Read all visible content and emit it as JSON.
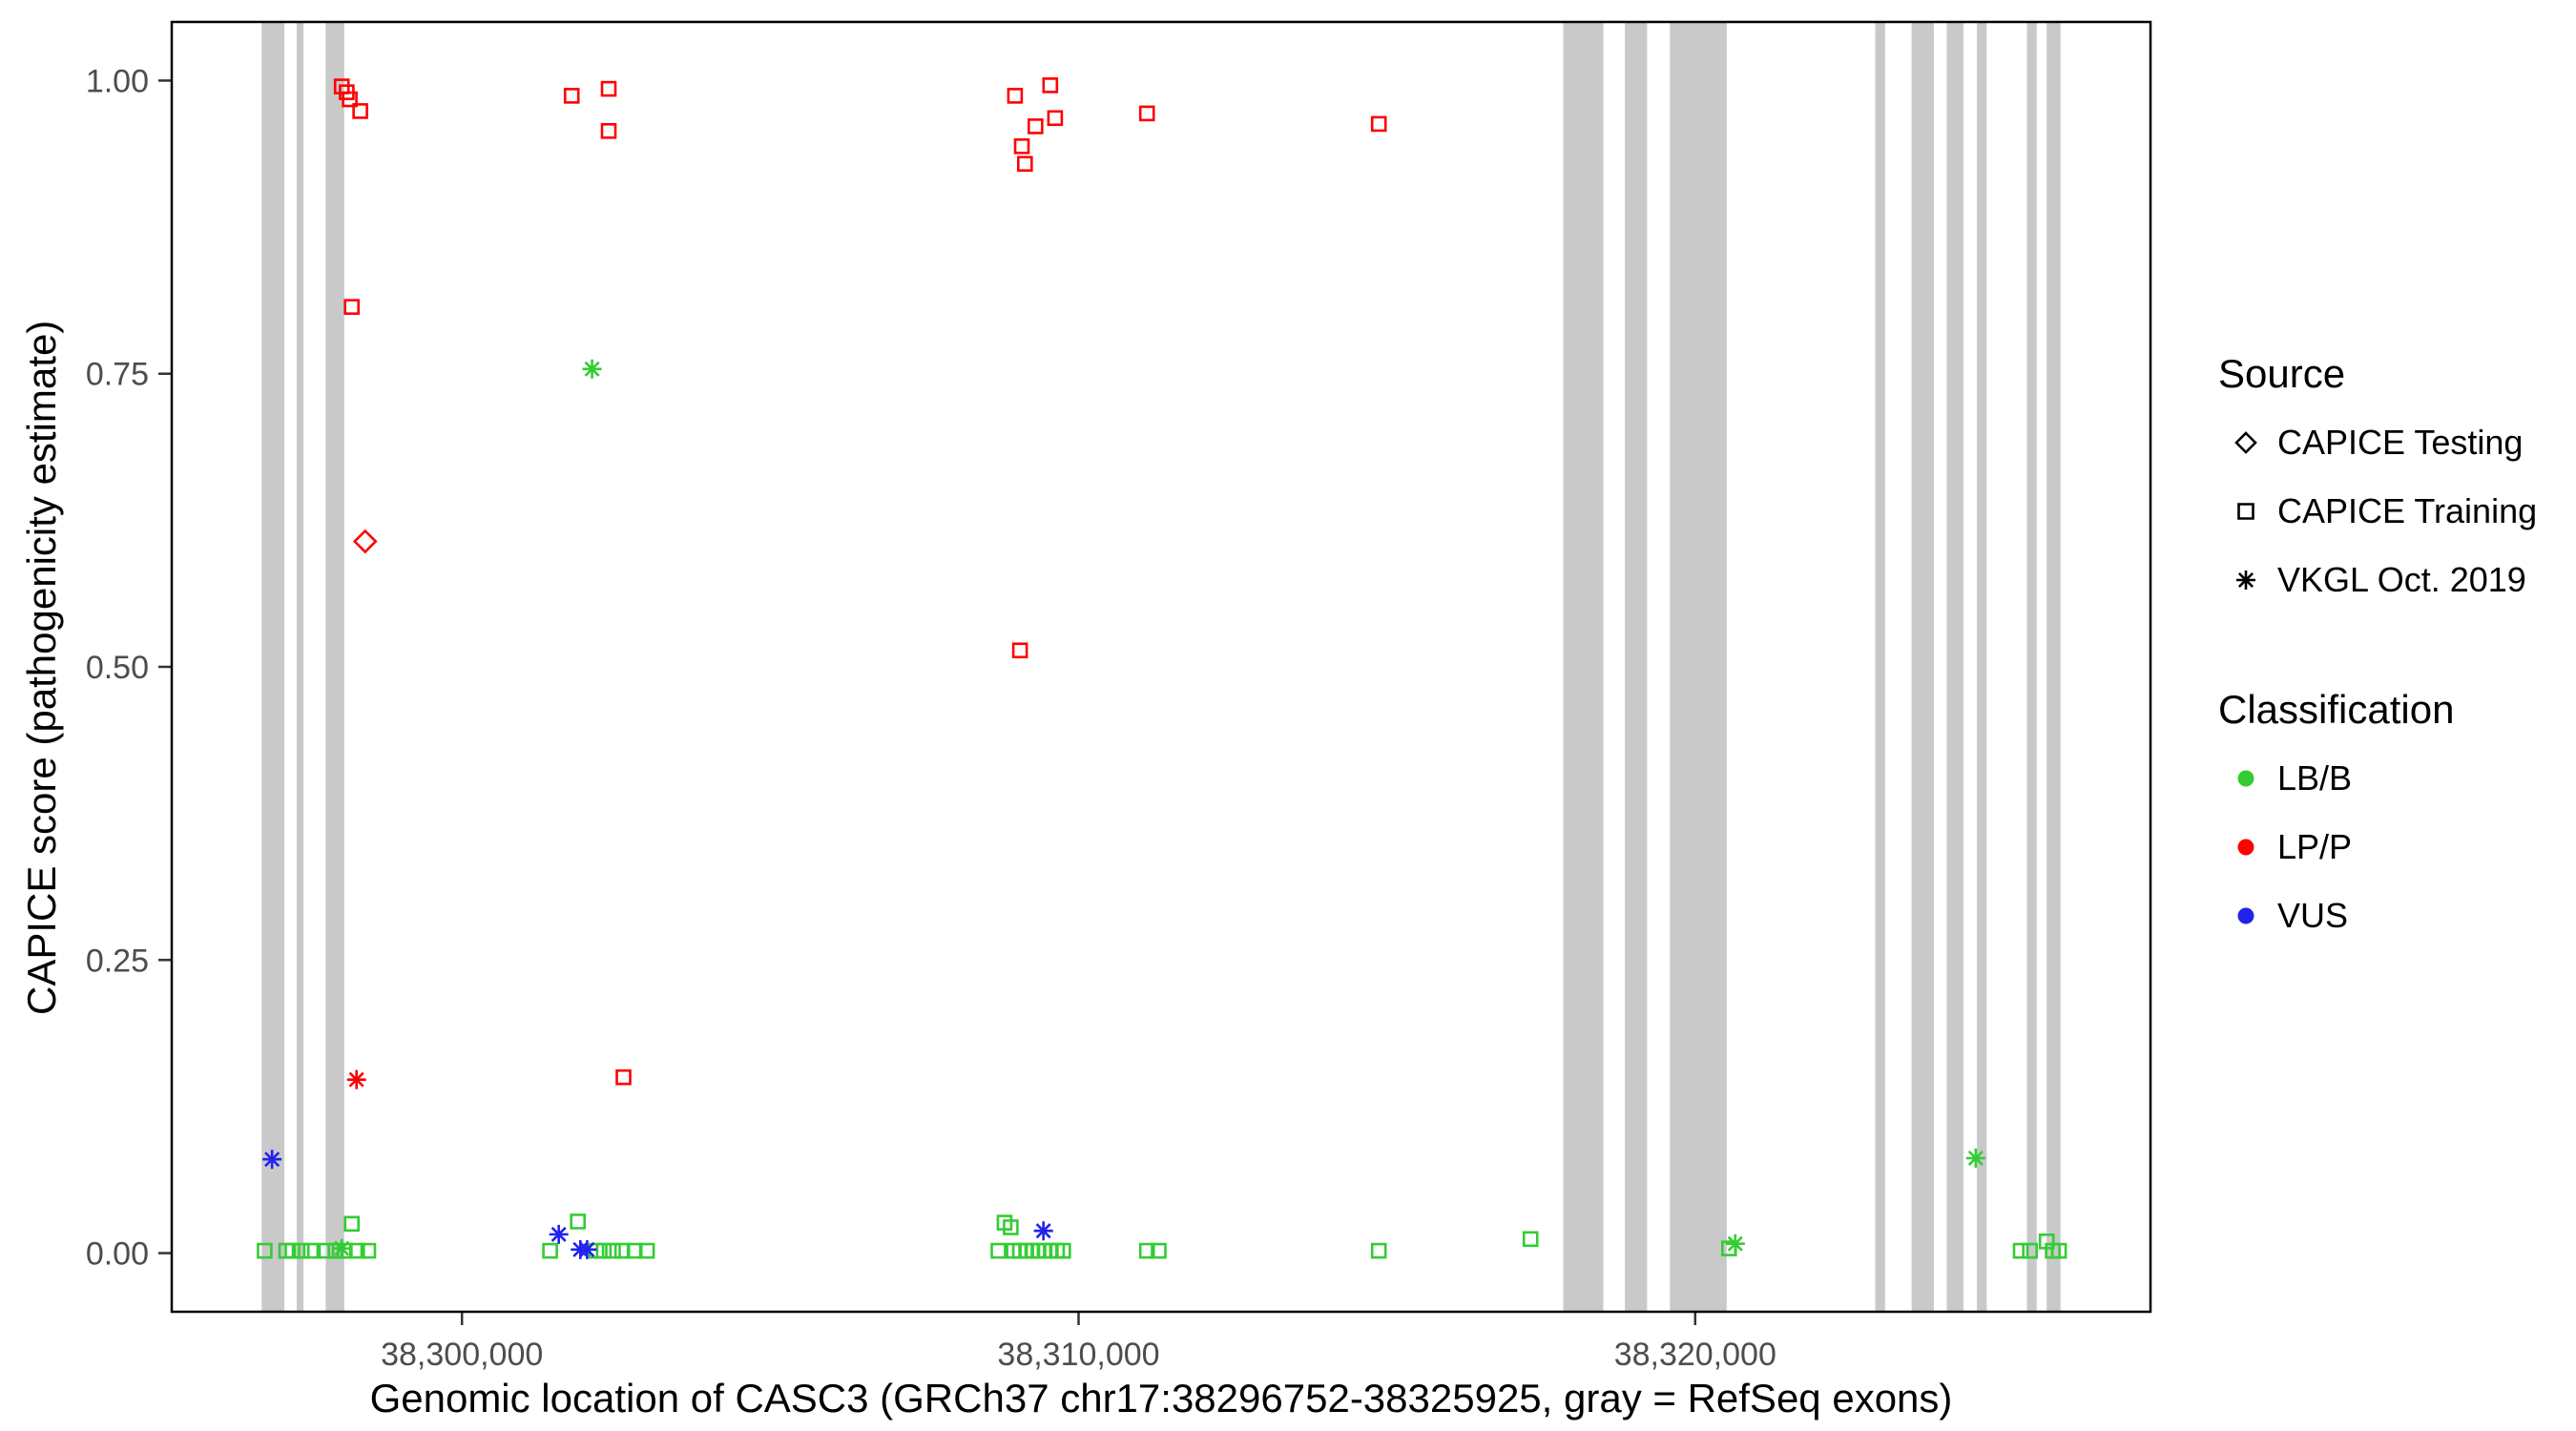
{
  "chart_data": {
    "type": "scatter",
    "title": "",
    "xlabel": "Genomic location of CASC3 (GRCh37 chr17:38296752-38325925, gray = RefSeq exons)",
    "ylabel": "CAPICE score (pathogenicity estimate)",
    "xlim": [
      38295293,
      38327384
    ],
    "ylim": [
      -0.05,
      1.05
    ],
    "grid": false,
    "legend_position": "right",
    "exon_color": "#C9C9C9",
    "tick_label_color": "#4D4D4D",
    "x_ticks": [
      {
        "value": 38300000,
        "label": "38,300,000"
      },
      {
        "value": 38310000,
        "label": "38,310,000"
      },
      {
        "value": 38320000,
        "label": "38,320,000"
      }
    ],
    "y_ticks": [
      {
        "value": 0.0,
        "label": "0.00"
      },
      {
        "value": 0.25,
        "label": "0.25"
      },
      {
        "value": 0.5,
        "label": "0.50"
      },
      {
        "value": 0.75,
        "label": "0.75"
      },
      {
        "value": 1.0,
        "label": "1.00"
      }
    ],
    "exons": [
      [
        38296752,
        38297120
      ],
      [
        38297320,
        38297430
      ],
      [
        38297790,
        38298090
      ],
      [
        38317860,
        38318510
      ],
      [
        38318860,
        38319220
      ],
      [
        38319590,
        38320510
      ],
      [
        38322920,
        38323080
      ],
      [
        38323510,
        38323870
      ],
      [
        38324080,
        38324350
      ],
      [
        38324570,
        38324730
      ],
      [
        38325380,
        38325540
      ],
      [
        38325700,
        38325925
      ]
    ],
    "series": [
      {
        "id": "training-lpp",
        "source": "CAPICE Training",
        "classification": "LP/P",
        "shape": "square",
        "color": "#FF0000",
        "points": [
          [
            38298050,
            0.995
          ],
          [
            38298130,
            0.99
          ],
          [
            38298180,
            0.984
          ],
          [
            38298350,
            0.974
          ],
          [
            38298213,
            0.807
          ],
          [
            38301780,
            0.987
          ],
          [
            38302380,
            0.993
          ],
          [
            38302380,
            0.957
          ],
          [
            38302620,
            0.15
          ],
          [
            38308970,
            0.987
          ],
          [
            38309080,
            0.944
          ],
          [
            38309130,
            0.929
          ],
          [
            38309300,
            0.961
          ],
          [
            38309540,
            0.996
          ],
          [
            38309620,
            0.968
          ],
          [
            38309050,
            0.514
          ],
          [
            38311110,
            0.972
          ],
          [
            38314870,
            0.963
          ]
        ]
      },
      {
        "id": "training-lbb",
        "source": "CAPICE Training",
        "classification": "LB/B",
        "shape": "square",
        "color": "#32CD32",
        "points": [
          [
            38296800,
            0.002
          ],
          [
            38297150,
            0.002
          ],
          [
            38297250,
            0.002
          ],
          [
            38297400,
            0.002
          ],
          [
            38297550,
            0.002
          ],
          [
            38297800,
            0.002
          ],
          [
            38297950,
            0.002
          ],
          [
            38298100,
            0.002
          ],
          [
            38298213,
            0.025
          ],
          [
            38298300,
            0.002
          ],
          [
            38298480,
            0.002
          ],
          [
            38301430,
            0.002
          ],
          [
            38301880,
            0.027
          ],
          [
            38302180,
            0.002
          ],
          [
            38302300,
            0.002
          ],
          [
            38302450,
            0.002
          ],
          [
            38302600,
            0.002
          ],
          [
            38302800,
            0.002
          ],
          [
            38303000,
            0.002
          ],
          [
            38308700,
            0.002
          ],
          [
            38308800,
            0.026
          ],
          [
            38308900,
            0.022
          ],
          [
            38308950,
            0.002
          ],
          [
            38309050,
            0.002
          ],
          [
            38309150,
            0.002
          ],
          [
            38309250,
            0.002
          ],
          [
            38309350,
            0.002
          ],
          [
            38309450,
            0.002
          ],
          [
            38309550,
            0.002
          ],
          [
            38309650,
            0.002
          ],
          [
            38309750,
            0.002
          ],
          [
            38311110,
            0.002
          ],
          [
            38311300,
            0.002
          ],
          [
            38314870,
            0.002
          ],
          [
            38317330,
            0.012
          ],
          [
            38320550,
            0.004
          ],
          [
            38325280,
            0.002
          ],
          [
            38325430,
            0.002
          ],
          [
            38325700,
            0.01
          ],
          [
            38325800,
            0.002
          ],
          [
            38325900,
            0.002
          ]
        ]
      },
      {
        "id": "testing-lpp",
        "source": "CAPICE Testing",
        "classification": "LP/P",
        "shape": "diamond",
        "color": "#FF0000",
        "points": [
          [
            38298430,
            0.607
          ]
        ]
      },
      {
        "id": "vkgl-lpp",
        "source": "VKGL Oct. 2019",
        "classification": "LP/P",
        "shape": "asterisk",
        "color": "#FF0000",
        "points": [
          [
            38298290,
            0.148
          ]
        ]
      },
      {
        "id": "vkgl-lbb",
        "source": "VKGL Oct. 2019",
        "classification": "LB/B",
        "shape": "asterisk",
        "color": "#32CD32",
        "points": [
          [
            38302110,
            0.754
          ],
          [
            38298050,
            0.004
          ],
          [
            38320650,
            0.008
          ],
          [
            38324550,
            0.081
          ]
        ]
      },
      {
        "id": "vkgl-vus",
        "source": "VKGL Oct. 2019",
        "classification": "VUS",
        "shape": "asterisk",
        "color": "#2222EE",
        "points": [
          [
            38296920,
            0.08
          ],
          [
            38301570,
            0.016
          ],
          [
            38301920,
            0.003
          ],
          [
            38302030,
            0.003
          ],
          [
            38309430,
            0.019
          ]
        ]
      }
    ]
  },
  "legend": {
    "source": {
      "title": "Source",
      "items": [
        {
          "label": "CAPICE Testing",
          "shape": "diamond",
          "color": "#000000"
        },
        {
          "label": "CAPICE Training",
          "shape": "square",
          "color": "#000000"
        },
        {
          "label": "VKGL Oct. 2019",
          "shape": "asterisk",
          "color": "#000000"
        }
      ]
    },
    "classification": {
      "title": "Classification",
      "items": [
        {
          "label": "LB/B",
          "shape": "circle",
          "color": "#32CD32"
        },
        {
          "label": "LP/P",
          "shape": "circle",
          "color": "#FF0000"
        },
        {
          "label": "VUS",
          "shape": "circle",
          "color": "#2222EE"
        }
      ]
    }
  }
}
